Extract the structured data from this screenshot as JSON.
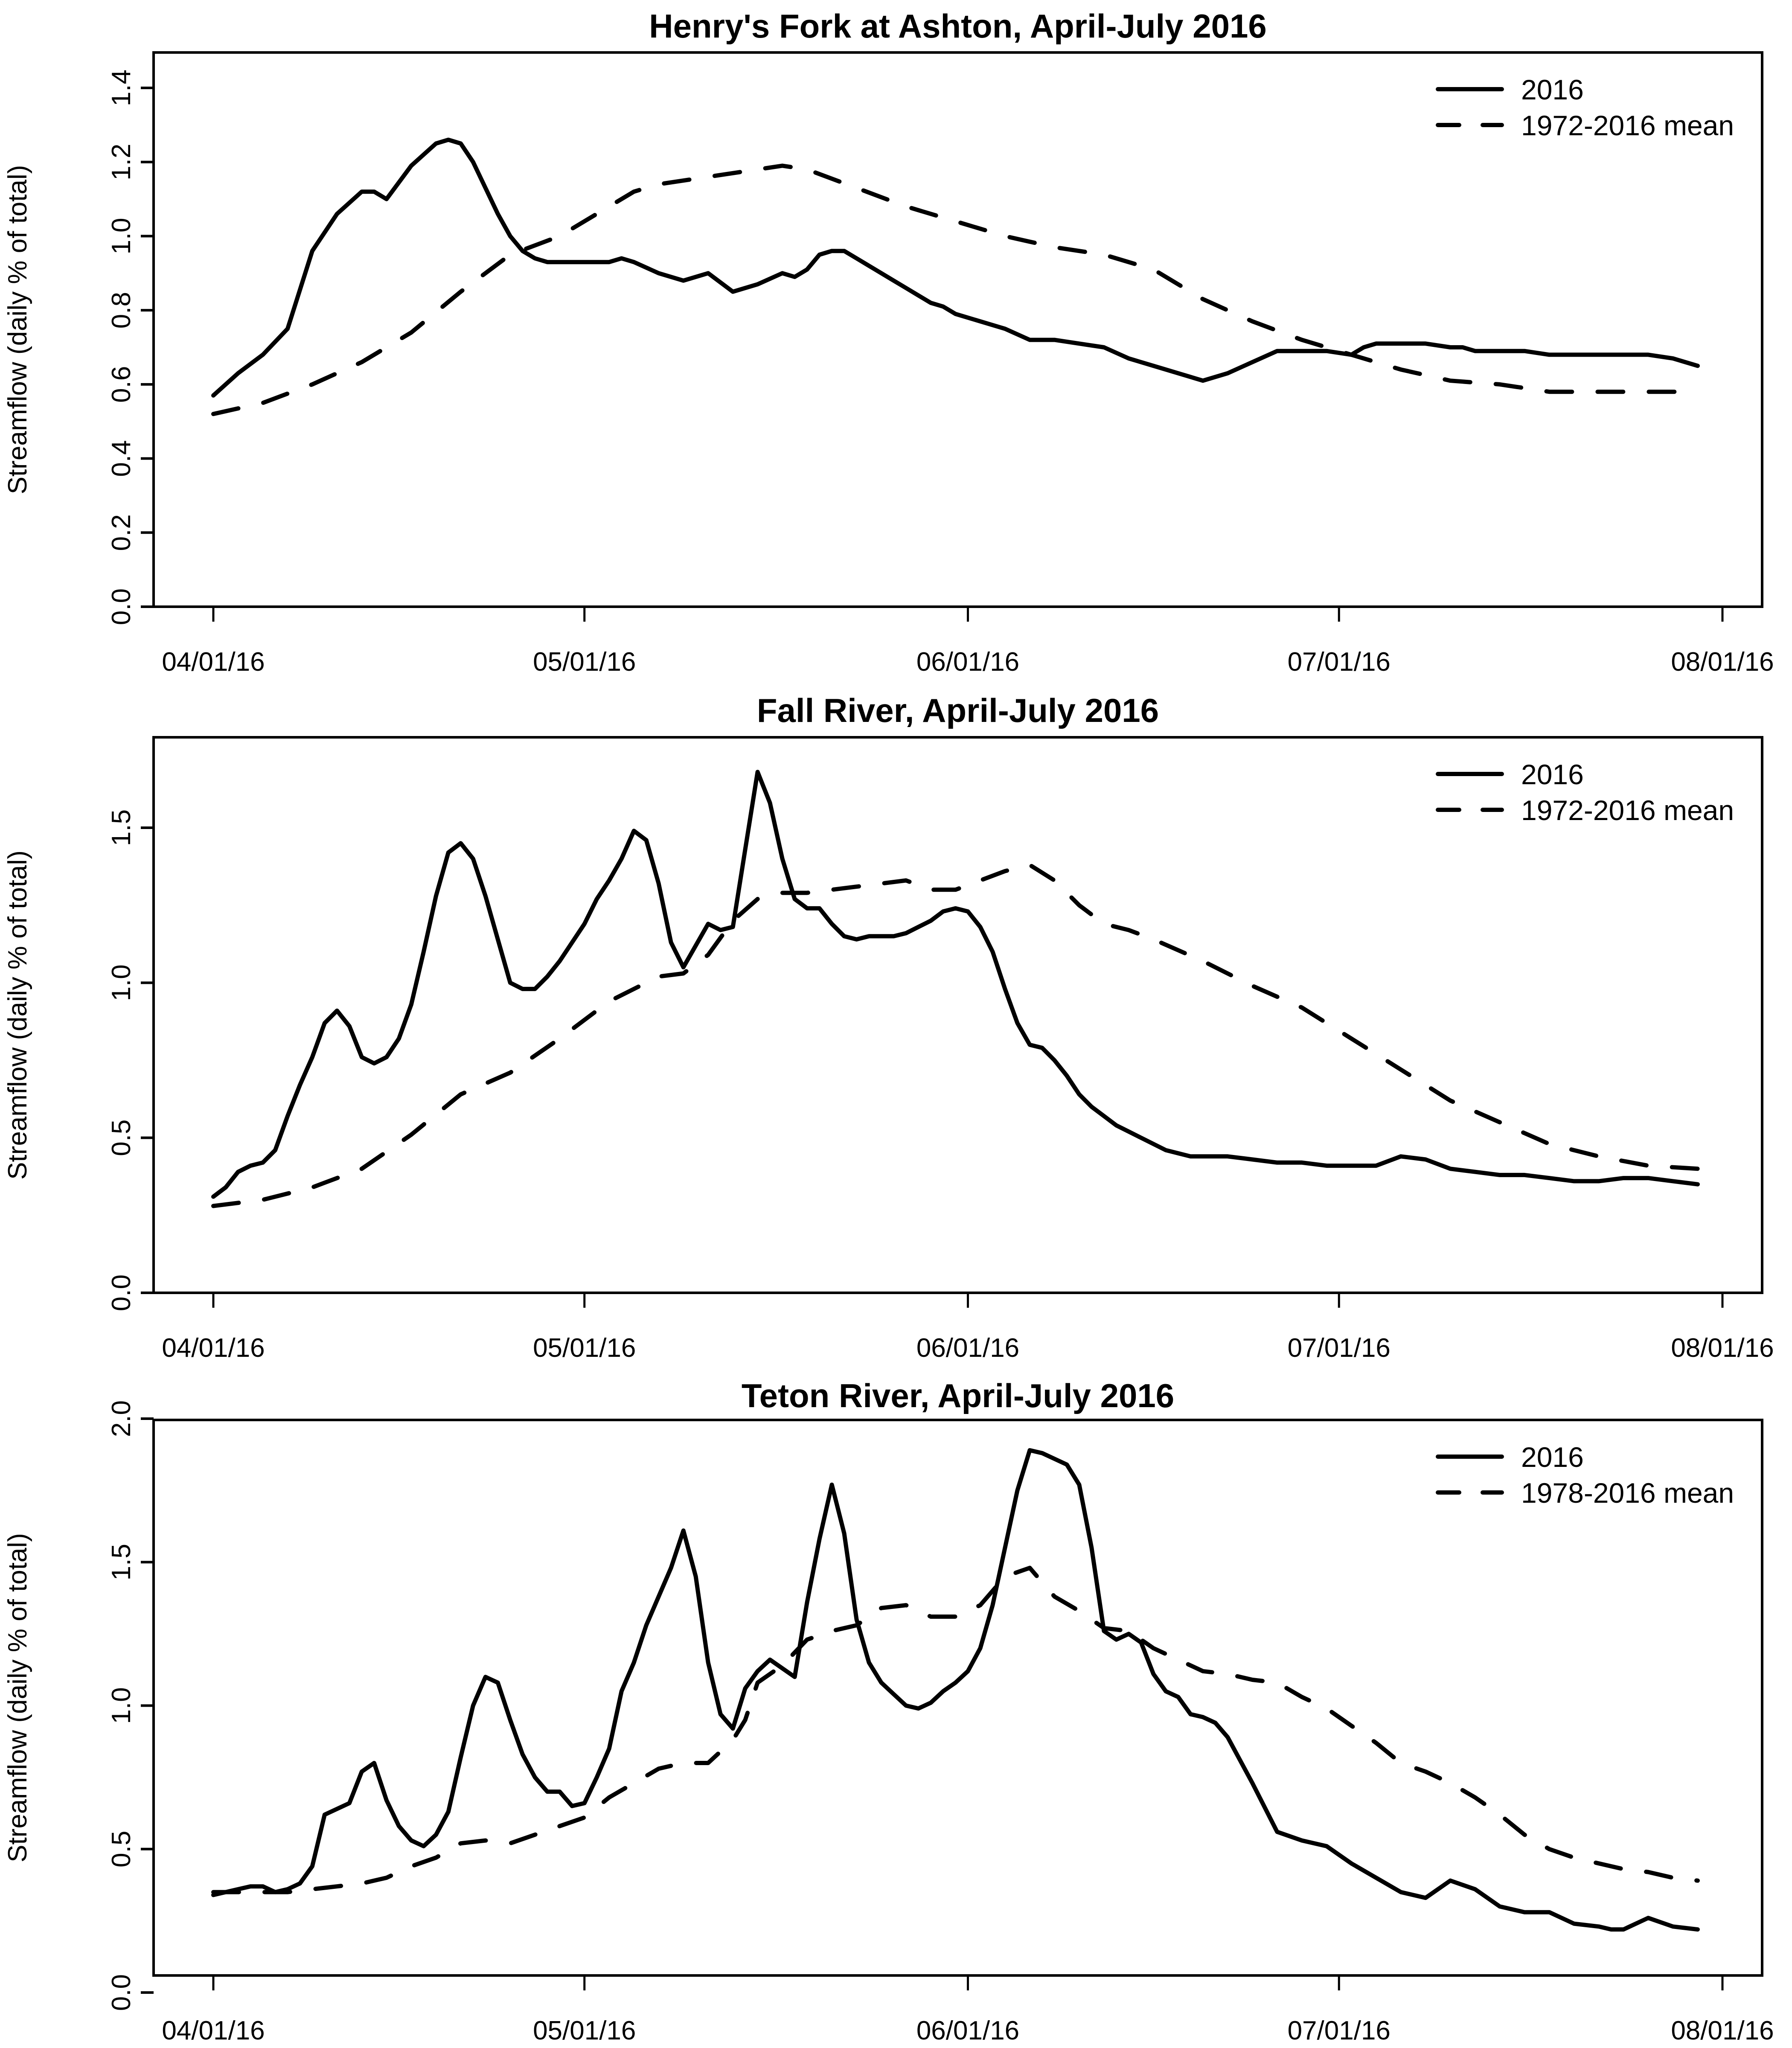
{
  "figure": {
    "x_tick_labels": [
      "04/01/16",
      "05/01/16",
      "06/01/16",
      "07/01/16",
      "08/01/16"
    ],
    "x_tick_days": [
      0,
      30,
      61,
      91,
      122
    ],
    "ylabel": "Streamflow (daily % of total)"
  },
  "chart_data": [
    {
      "type": "line",
      "title": "Henry's Fork at Ashton, April-July 2016",
      "xlabel": "",
      "ylabel": "Streamflow (daily % of total)",
      "xlim_days": [
        0,
        122
      ],
      "ylim": [
        0,
        1.4
      ],
      "y_ticks": [
        0.0,
        0.2,
        0.4,
        0.6,
        0.8,
        1.0,
        1.2,
        1.4
      ],
      "y_tick_labels": [
        "0.0",
        "0.2",
        "0.4",
        "0.6",
        "0.8",
        "1.0",
        "1.2",
        "1.4"
      ],
      "legend": {
        "position": "top-right",
        "entries": [
          "2016",
          "1972-2016 mean"
        ]
      },
      "series": [
        {
          "name": "2016",
          "style": "solid",
          "x": [
            0,
            2,
            4,
            6,
            8,
            10,
            12,
            13,
            14,
            16,
            18,
            19,
            20,
            21,
            22,
            23,
            24,
            25,
            26,
            27,
            28,
            29,
            30,
            31,
            32,
            33,
            34,
            36,
            38,
            40,
            42,
            44,
            46,
            47,
            48,
            49,
            50,
            51,
            52,
            53,
            54,
            55,
            56,
            57,
            58,
            59,
            60,
            62,
            64,
            66,
            68,
            70,
            72,
            74,
            76,
            78,
            80,
            82,
            84,
            86,
            88,
            90,
            92,
            93,
            94,
            96,
            98,
            100,
            101,
            102,
            104,
            106,
            108,
            110,
            112,
            114,
            116,
            118,
            120
          ],
          "values": [
            0.57,
            0.63,
            0.68,
            0.75,
            0.96,
            1.06,
            1.12,
            1.12,
            1.1,
            1.19,
            1.25,
            1.26,
            1.25,
            1.2,
            1.13,
            1.06,
            1.0,
            0.96,
            0.94,
            0.93,
            0.93,
            0.93,
            0.93,
            0.93,
            0.93,
            0.94,
            0.93,
            0.9,
            0.88,
            0.9,
            0.85,
            0.87,
            0.9,
            0.89,
            0.91,
            0.95,
            0.96,
            0.96,
            0.94,
            0.92,
            0.9,
            0.88,
            0.86,
            0.84,
            0.82,
            0.81,
            0.79,
            0.77,
            0.75,
            0.72,
            0.72,
            0.71,
            0.7,
            0.67,
            0.65,
            0.63,
            0.61,
            0.63,
            0.66,
            0.69,
            0.69,
            0.69,
            0.68,
            0.7,
            0.71,
            0.71,
            0.71,
            0.7,
            0.7,
            0.69,
            0.69,
            0.69,
            0.68,
            0.68,
            0.68,
            0.68,
            0.68,
            0.67,
            0.65
          ]
        },
        {
          "name": "1972-2016 mean",
          "style": "dashed",
          "x": [
            0,
            4,
            8,
            12,
            16,
            20,
            24,
            28,
            32,
            34,
            36,
            40,
            44,
            46,
            48,
            52,
            56,
            60,
            64,
            68,
            72,
            76,
            80,
            84,
            88,
            92,
            96,
            100,
            104,
            108,
            112,
            116,
            120
          ],
          "values": [
            0.52,
            0.55,
            0.6,
            0.66,
            0.74,
            0.85,
            0.95,
            1.0,
            1.08,
            1.12,
            1.14,
            1.16,
            1.18,
            1.19,
            1.18,
            1.13,
            1.08,
            1.04,
            1.0,
            0.97,
            0.95,
            0.91,
            0.83,
            0.77,
            0.72,
            0.68,
            0.64,
            0.61,
            0.6,
            0.58,
            0.58,
            0.58,
            0.58
          ]
        }
      ]
    },
    {
      "type": "line",
      "title": "Fall River, April-July 2016",
      "xlabel": "",
      "ylabel": "Streamflow (daily % of total)",
      "xlim_days": [
        0,
        122
      ],
      "ylim": [
        0,
        1.7
      ],
      "y_ticks": [
        0.0,
        0.5,
        1.0,
        1.5
      ],
      "y_tick_labels": [
        "0.0",
        "0.5",
        "1.0",
        "1.5"
      ],
      "legend": {
        "position": "top-right",
        "entries": [
          "2016",
          "1972-2016 mean"
        ]
      },
      "series": [
        {
          "name": "2016",
          "style": "solid",
          "x": [
            0,
            1,
            2,
            3,
            4,
            5,
            6,
            7,
            8,
            9,
            10,
            11,
            12,
            13,
            14,
            15,
            16,
            17,
            18,
            19,
            20,
            21,
            22,
            23,
            24,
            25,
            26,
            27,
            28,
            29,
            30,
            31,
            32,
            33,
            34,
            35,
            36,
            37,
            38,
            39,
            40,
            41,
            42,
            43,
            44,
            45,
            46,
            47,
            48,
            49,
            50,
            51,
            52,
            53,
            54,
            55,
            56,
            57,
            58,
            59,
            60,
            61,
            62,
            63,
            64,
            65,
            66,
            67,
            68,
            69,
            70,
            71,
            72,
            73,
            74,
            75,
            76,
            77,
            78,
            79,
            80,
            82,
            84,
            86,
            88,
            90,
            92,
            94,
            96,
            98,
            100,
            102,
            104,
            106,
            108,
            110,
            112,
            114,
            116,
            118,
            120
          ],
          "values": [
            0.31,
            0.34,
            0.39,
            0.41,
            0.42,
            0.46,
            0.57,
            0.67,
            0.76,
            0.87,
            0.91,
            0.86,
            0.76,
            0.74,
            0.76,
            0.82,
            0.93,
            1.1,
            1.28,
            1.42,
            1.45,
            1.4,
            1.28,
            1.14,
            1.0,
            0.98,
            0.98,
            1.02,
            1.07,
            1.13,
            1.19,
            1.27,
            1.33,
            1.4,
            1.49,
            1.46,
            1.32,
            1.13,
            1.05,
            1.12,
            1.19,
            1.17,
            1.18,
            1.43,
            1.68,
            1.58,
            1.4,
            1.27,
            1.24,
            1.24,
            1.19,
            1.15,
            1.14,
            1.15,
            1.15,
            1.15,
            1.16,
            1.18,
            1.2,
            1.23,
            1.24,
            1.23,
            1.18,
            1.1,
            0.98,
            0.87,
            0.8,
            0.79,
            0.75,
            0.7,
            0.64,
            0.6,
            0.57,
            0.54,
            0.52,
            0.5,
            0.48,
            0.46,
            0.45,
            0.44,
            0.44,
            0.44,
            0.43,
            0.42,
            0.42,
            0.41,
            0.41,
            0.41,
            0.44,
            0.43,
            0.4,
            0.39,
            0.38,
            0.38,
            0.37,
            0.36,
            0.36,
            0.37,
            0.37,
            0.36,
            0.35
          ]
        },
        {
          "name": "1972-2016 mean",
          "style": "dashed",
          "x": [
            0,
            4,
            8,
            12,
            16,
            20,
            24,
            28,
            32,
            36,
            38,
            40,
            42,
            44,
            46,
            48,
            50,
            52,
            54,
            56,
            58,
            60,
            62,
            64,
            66,
            68,
            70,
            72,
            74,
            76,
            80,
            84,
            88,
            92,
            96,
            100,
            104,
            108,
            112,
            116,
            120
          ],
          "values": [
            0.28,
            0.3,
            0.34,
            0.4,
            0.51,
            0.64,
            0.71,
            0.82,
            0.94,
            1.02,
            1.03,
            1.09,
            1.2,
            1.27,
            1.29,
            1.29,
            1.3,
            1.31,
            1.32,
            1.33,
            1.3,
            1.3,
            1.33,
            1.36,
            1.38,
            1.33,
            1.25,
            1.19,
            1.17,
            1.14,
            1.07,
            0.99,
            0.92,
            0.82,
            0.72,
            0.62,
            0.55,
            0.48,
            0.44,
            0.41,
            0.4
          ]
        }
      ]
    },
    {
      "type": "line",
      "title": "Teton River, April-July 2016",
      "xlabel": "",
      "ylabel": "Streamflow (daily % of total)",
      "xlim_days": [
        0,
        122
      ],
      "ylim": [
        0,
        2.0
      ],
      "y_ticks": [
        0.0,
        0.5,
        1.0,
        1.5,
        2.0
      ],
      "y_tick_labels": [
        "0.0",
        "0.5",
        "1.0",
        "1.5",
        "2.0"
      ],
      "legend": {
        "position": "top-right",
        "entries": [
          "2016",
          "1978-2016 mean"
        ]
      },
      "series": [
        {
          "name": "2016",
          "style": "solid",
          "x": [
            0,
            1,
            2,
            3,
            4,
            5,
            6,
            7,
            8,
            9,
            10,
            11,
            12,
            13,
            14,
            15,
            16,
            17,
            18,
            19,
            20,
            21,
            22,
            23,
            24,
            25,
            26,
            27,
            28,
            29,
            30,
            31,
            32,
            33,
            34,
            35,
            36,
            37,
            38,
            39,
            40,
            41,
            42,
            43,
            44,
            45,
            46,
            47,
            48,
            49,
            50,
            51,
            52,
            53,
            54,
            55,
            56,
            57,
            58,
            59,
            60,
            61,
            62,
            63,
            64,
            65,
            66,
            67,
            68,
            69,
            70,
            71,
            72,
            73,
            74,
            75,
            76,
            77,
            78,
            79,
            80,
            81,
            82,
            84,
            86,
            88,
            90,
            92,
            94,
            96,
            98,
            100,
            102,
            104,
            106,
            108,
            110,
            112,
            113,
            114,
            116,
            118,
            120
          ],
          "values": [
            0.34,
            0.35,
            0.36,
            0.37,
            0.37,
            0.35,
            0.36,
            0.38,
            0.44,
            0.62,
            0.64,
            0.66,
            0.77,
            0.8,
            0.67,
            0.58,
            0.53,
            0.51,
            0.55,
            0.63,
            0.82,
            1.0,
            1.1,
            1.08,
            0.95,
            0.83,
            0.75,
            0.7,
            0.7,
            0.65,
            0.66,
            0.75,
            0.85,
            1.05,
            1.15,
            1.28,
            1.38,
            1.48,
            1.61,
            1.45,
            1.15,
            0.97,
            0.92,
            1.06,
            1.12,
            1.16,
            1.13,
            1.1,
            1.36,
            1.58,
            1.77,
            1.6,
            1.3,
            1.15,
            1.08,
            1.04,
            1.0,
            0.99,
            1.01,
            1.05,
            1.08,
            1.12,
            1.2,
            1.35,
            1.55,
            1.75,
            1.89,
            1.88,
            1.86,
            1.84,
            1.77,
            1.55,
            1.26,
            1.23,
            1.25,
            1.22,
            1.11,
            1.05,
            1.03,
            0.97,
            0.96,
            0.94,
            0.89,
            0.73,
            0.56,
            0.53,
            0.51,
            0.45,
            0.4,
            0.35,
            0.33,
            0.39,
            0.36,
            0.3,
            0.28,
            0.28,
            0.24,
            0.23,
            0.22,
            0.22,
            0.26,
            0.23,
            0.22
          ]
        },
        {
          "name": "1978-2016 mean",
          "style": "dashed",
          "x": [
            0,
            2,
            4,
            6,
            8,
            10,
            12,
            14,
            16,
            18,
            20,
            22,
            24,
            26,
            28,
            30,
            32,
            34,
            36,
            38,
            40,
            42,
            43,
            44,
            46,
            48,
            50,
            52,
            54,
            56,
            58,
            60,
            62,
            64,
            66,
            68,
            70,
            72,
            74,
            76,
            78,
            80,
            82,
            84,
            86,
            88,
            90,
            92,
            94,
            96,
            98,
            100,
            102,
            104,
            106,
            108,
            110,
            112,
            114,
            116,
            118,
            120
          ],
          "values": [
            0.35,
            0.35,
            0.35,
            0.35,
            0.36,
            0.37,
            0.38,
            0.4,
            0.44,
            0.47,
            0.52,
            0.53,
            0.52,
            0.55,
            0.58,
            0.61,
            0.68,
            0.73,
            0.78,
            0.8,
            0.8,
            0.88,
            0.95,
            1.08,
            1.14,
            1.23,
            1.26,
            1.28,
            1.34,
            1.35,
            1.31,
            1.31,
            1.35,
            1.45,
            1.48,
            1.38,
            1.33,
            1.27,
            1.26,
            1.2,
            1.16,
            1.12,
            1.11,
            1.09,
            1.08,
            1.03,
            0.99,
            0.93,
            0.87,
            0.8,
            0.77,
            0.73,
            0.68,
            0.62,
            0.55,
            0.5,
            0.47,
            0.45,
            0.43,
            0.42,
            0.4,
            0.39
          ]
        }
      ]
    }
  ]
}
